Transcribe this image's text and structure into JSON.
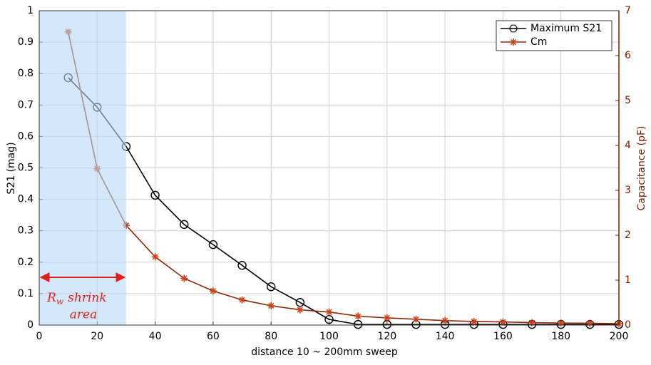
{
  "chart_data": {
    "type": "line",
    "x_label": "distance 10 ~ 200mm sweep",
    "y_label": "S21 (mag)",
    "y2_label": "Capacitance (pF)",
    "x": [
      10,
      20,
      30,
      40,
      50,
      60,
      70,
      80,
      90,
      100,
      110,
      120,
      130,
      140,
      150,
      160,
      170,
      180,
      190,
      200
    ],
    "series": [
      {
        "name": "Maximum S21",
        "color": "#000000",
        "marker": "o",
        "values": [
          0.787,
          0.693,
          0.568,
          0.413,
          0.32,
          0.256,
          0.19,
          0.122,
          0.072,
          0.018,
          0.002,
          0.002,
          0.002,
          0.002,
          0.002,
          0.002,
          0.002,
          0.002,
          0.002,
          0.002
        ]
      },
      {
        "name": "Cm",
        "color": "#8b2a0a",
        "marker_color": "#c8431a",
        "marker": "*",
        "axis": "y2",
        "values": [
          6.53,
          3.48,
          2.22,
          1.52,
          1.04,
          0.76,
          0.56,
          0.43,
          0.34,
          0.29,
          0.2,
          0.16,
          0.13,
          0.1,
          0.08,
          0.07,
          0.055,
          0.045,
          0.04,
          0.03
        ]
      }
    ],
    "xlim": [
      0,
      200
    ],
    "xticks": [
      0,
      20,
      40,
      60,
      80,
      100,
      120,
      140,
      160,
      180,
      200
    ],
    "ylim": [
      0,
      1
    ],
    "yticks": [
      0,
      0.1,
      0.2,
      0.3,
      0.4,
      0.5,
      0.6,
      0.7,
      0.8,
      0.9,
      1
    ],
    "y2lim": [
      0,
      7
    ],
    "y2ticks": [
      0,
      1,
      2,
      3,
      4,
      5,
      6,
      7
    ],
    "y2_color": "#7a1f00",
    "grid": true,
    "legend": "upper right",
    "shaded_span": [
      0,
      30
    ],
    "shaded_color": "#b8d8f5",
    "annotation": {
      "main": "R",
      "sub": "w",
      "rest": "shrink",
      "line2": "area",
      "color": "#e02020"
    }
  }
}
